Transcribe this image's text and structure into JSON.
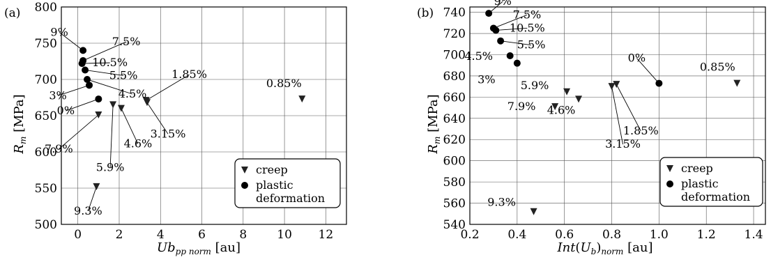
{
  "chart_data": [
    {
      "type": "scatter",
      "panel_label": "(a)",
      "xlabel": "Ub_{pp norm} [au]",
      "ylabel": "R_m [MPa]",
      "xlim": [
        -0.8,
        13
      ],
      "ylim": [
        500,
        800
      ],
      "xticks": [
        0,
        2,
        4,
        6,
        8,
        10,
        12
      ],
      "yticks": [
        500,
        550,
        600,
        650,
        700,
        750,
        800
      ],
      "grid": true,
      "legend_position": "bottom-right",
      "series": [
        {
          "name": "creep",
          "marker": "triangle-down",
          "points": [
            {
              "label": "0.85%",
              "x": 10.85,
              "y": 673
            },
            {
              "label": "1.85%",
              "x": 3.3,
              "y": 671
            },
            {
              "label": "3.15%",
              "x": 3.35,
              "y": 668
            },
            {
              "label": "4.6%",
              "x": 2.1,
              "y": 660
            },
            {
              "label": "5.9%",
              "x": 1.7,
              "y": 665
            },
            {
              "label": "7.9%",
              "x": 1.0,
              "y": 651
            },
            {
              "label": "9.3%",
              "x": 0.9,
              "y": 552
            }
          ]
        },
        {
          "name": "plastic deformation",
          "marker": "circle",
          "points": [
            {
              "label": "0%",
              "x": 1.0,
              "y": 673
            },
            {
              "label": "3%",
              "x": 0.55,
              "y": 692
            },
            {
              "label": "4.5%",
              "x": 0.45,
              "y": 700
            },
            {
              "label": "5.5%",
              "x": 0.35,
              "y": 713
            },
            {
              "label": "10.5%",
              "x": 0.2,
              "y": 722
            },
            {
              "label": "7.5%",
              "x": 0.25,
              "y": 726
            },
            {
              "label": "9%",
              "x": 0.25,
              "y": 740
            }
          ]
        }
      ]
    },
    {
      "type": "scatter",
      "panel_label": "(b)",
      "xlabel": "Int(U_b)_{norm} [au]",
      "ylabel": "R_m [MPa]",
      "xlim": [
        0.2,
        1.45
      ],
      "ylim": [
        540,
        745
      ],
      "xticks": [
        0.2,
        0.4,
        0.6,
        0.8,
        1.0,
        1.2,
        1.4
      ],
      "yticks": [
        540,
        560,
        580,
        600,
        620,
        640,
        660,
        680,
        700,
        720,
        740
      ],
      "grid": true,
      "legend_position": "bottom-right",
      "series": [
        {
          "name": "creep",
          "marker": "triangle-down",
          "points": [
            {
              "label": "0.85%",
              "x": 1.33,
              "y": 673
            },
            {
              "label": "1.85%",
              "x": 0.82,
              "y": 672
            },
            {
              "label": "3.15%",
              "x": 0.8,
              "y": 670
            },
            {
              "label": "4.6%",
              "x": 0.66,
              "y": 658
            },
            {
              "label": "5.9%",
              "x": 0.61,
              "y": 665
            },
            {
              "label": "7.9%",
              "x": 0.56,
              "y": 651
            },
            {
              "label": "9.3%",
              "x": 0.47,
              "y": 552
            }
          ]
        },
        {
          "name": "plastic deformation",
          "marker": "circle",
          "points": [
            {
              "label": "0%",
              "x": 1.0,
              "y": 673
            },
            {
              "label": "3%",
              "x": 0.4,
              "y": 692
            },
            {
              "label": "4.5%",
              "x": 0.37,
              "y": 699
            },
            {
              "label": "5.5%",
              "x": 0.33,
              "y": 713
            },
            {
              "label": "10.5%",
              "x": 0.31,
              "y": 723
            },
            {
              "label": "7.5%",
              "x": 0.3,
              "y": 725
            },
            {
              "label": "9%",
              "x": 0.28,
              "y": 739
            }
          ]
        }
      ]
    }
  ]
}
